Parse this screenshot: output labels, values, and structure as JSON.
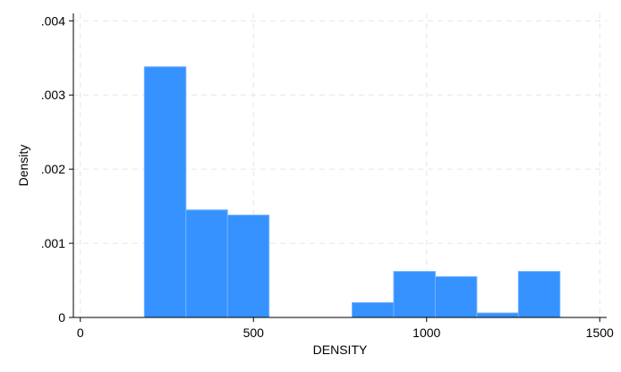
{
  "chart_data": {
    "type": "bar",
    "subtype": "histogram",
    "title": "",
    "xlabel": "DENSITY",
    "ylabel": "Density",
    "xlim": [
      -20,
      1520
    ],
    "ylim": [
      0,
      0.0041
    ],
    "xticks": [
      {
        "value": 0,
        "label": "0"
      },
      {
        "value": 500,
        "label": "500"
      },
      {
        "value": 1000,
        "label": "1000"
      },
      {
        "value": 1500,
        "label": "1500"
      }
    ],
    "yticks": [
      {
        "value": 0,
        "label": "0"
      },
      {
        "value": 0.001,
        "label": ".001"
      },
      {
        "value": 0.002,
        "label": ".002"
      },
      {
        "value": 0.003,
        "label": ".003"
      },
      {
        "value": 0.004,
        "label": ".004"
      }
    ],
    "grid": true,
    "bar_color": "#3592ff",
    "bins": [
      {
        "x0": 185,
        "x1": 305,
        "value": 0.00338
      },
      {
        "x0": 305,
        "x1": 425,
        "value": 0.00145
      },
      {
        "x0": 425,
        "x1": 545,
        "value": 0.00138
      },
      {
        "x0": 545,
        "x1": 665,
        "value": 0
      },
      {
        "x0": 665,
        "x1": 785,
        "value": 0
      },
      {
        "x0": 785,
        "x1": 905,
        "value": 0.0002
      },
      {
        "x0": 905,
        "x1": 1025,
        "value": 0.00062
      },
      {
        "x0": 1025,
        "x1": 1145,
        "value": 0.00055
      },
      {
        "x0": 1145,
        "x1": 1265,
        "value": 6e-05
      },
      {
        "x0": 1265,
        "x1": 1385,
        "value": 0.00062
      }
    ]
  }
}
